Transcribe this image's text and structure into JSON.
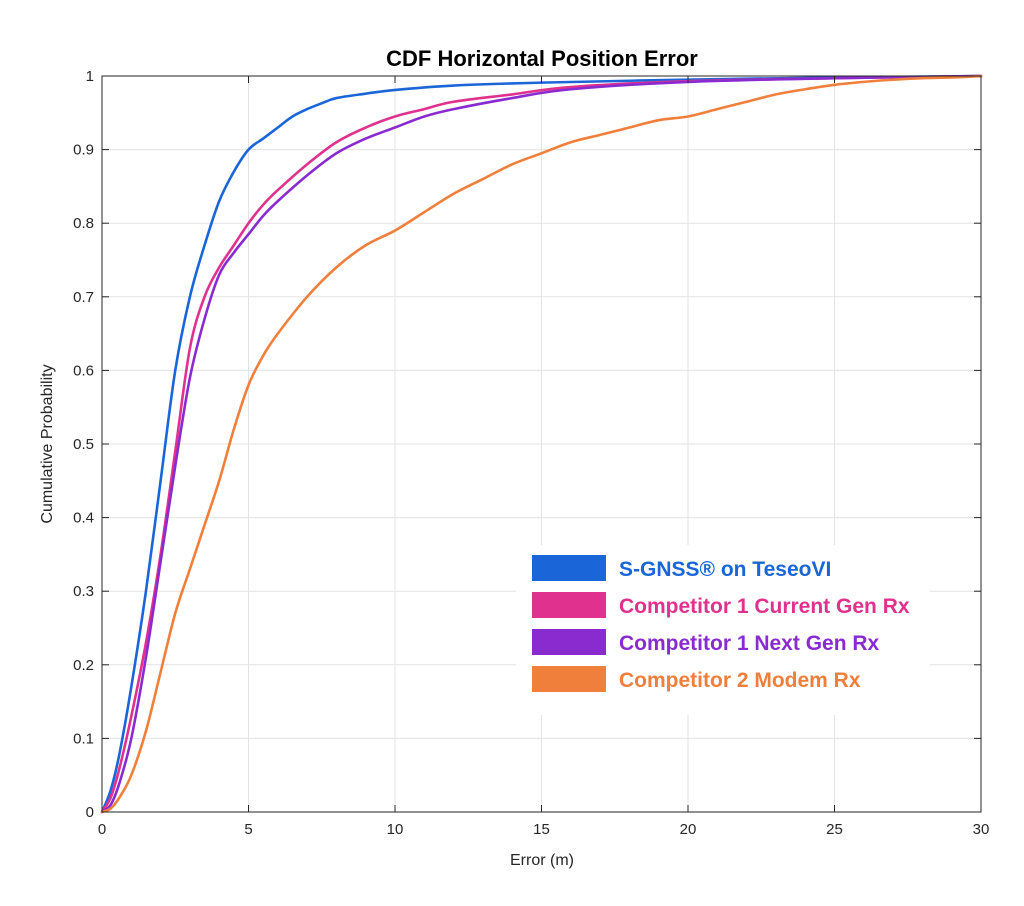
{
  "chart_data": {
    "type": "line",
    "title": "CDF Horizontal Position Error",
    "xlabel": "Error (m)",
    "ylabel": "Cumulative Probability",
    "xlim": [
      0,
      30
    ],
    "ylim": [
      0,
      1
    ],
    "xticks": [
      0,
      5,
      10,
      15,
      20,
      25,
      30
    ],
    "yticks": [
      0,
      0.1,
      0.2,
      0.3,
      0.4,
      0.5,
      0.6,
      0.7,
      0.8,
      0.9,
      1
    ],
    "xtick_labels": [
      "0",
      "5",
      "10",
      "15",
      "20",
      "25",
      "30"
    ],
    "ytick_labels": [
      "0",
      "0.1",
      "0.2",
      "0.3",
      "0.4",
      "0.5",
      "0.6",
      "0.7",
      "0.8",
      "0.9",
      "1"
    ],
    "grid": true,
    "legend_position": "lower-right",
    "series": [
      {
        "name": "S-GNSS® on TeseoVI",
        "color": "#1a66d9",
        "x": [
          0,
          0.3,
          0.6,
          1.0,
          1.5,
          2.0,
          2.5,
          3.0,
          3.5,
          4.0,
          4.5,
          5.0,
          5.5,
          6.0,
          6.5,
          7.0,
          7.5,
          8.0,
          9.0,
          10.0,
          12.0,
          15.0,
          20.0,
          25.0,
          30.0
        ],
        "values": [
          0,
          0.03,
          0.08,
          0.17,
          0.3,
          0.45,
          0.6,
          0.7,
          0.77,
          0.83,
          0.87,
          0.9,
          0.915,
          0.93,
          0.945,
          0.955,
          0.963,
          0.97,
          0.976,
          0.981,
          0.987,
          0.991,
          0.995,
          0.998,
          1.0
        ]
      },
      {
        "name": "Competitor 1 Current Gen Rx",
        "color": "#e0318f",
        "x": [
          0,
          0.3,
          0.6,
          1.0,
          1.5,
          2.0,
          2.5,
          3.0,
          3.5,
          4.0,
          4.5,
          5.0,
          5.5,
          6.0,
          7.0,
          8.0,
          9.0,
          10.0,
          11.0,
          12.0,
          14.0,
          16.0,
          20.0,
          25.0,
          30.0
        ],
        "values": [
          0,
          0.02,
          0.06,
          0.13,
          0.23,
          0.35,
          0.49,
          0.63,
          0.7,
          0.74,
          0.77,
          0.8,
          0.825,
          0.845,
          0.88,
          0.91,
          0.93,
          0.945,
          0.955,
          0.965,
          0.975,
          0.985,
          0.993,
          0.997,
          1.0
        ]
      },
      {
        "name": "Competitor 1 Next Gen Rx",
        "color": "#8a2bd0",
        "x": [
          0,
          0.3,
          0.6,
          1.0,
          1.5,
          2.0,
          2.5,
          3.0,
          3.5,
          4.0,
          4.5,
          5.0,
          5.5,
          6.0,
          7.0,
          8.0,
          9.0,
          10.0,
          11.0,
          12.0,
          14.0,
          16.0,
          20.0,
          25.0,
          30.0
        ],
        "values": [
          0,
          0.01,
          0.04,
          0.1,
          0.21,
          0.34,
          0.47,
          0.59,
          0.67,
          0.73,
          0.76,
          0.785,
          0.81,
          0.83,
          0.865,
          0.895,
          0.915,
          0.93,
          0.945,
          0.955,
          0.97,
          0.982,
          0.992,
          0.997,
          1.0
        ]
      },
      {
        "name": "Competitor 2 Modem Rx",
        "color": "#f07f3c",
        "x": [
          0,
          0.3,
          0.6,
          1.0,
          1.5,
          2.0,
          2.5,
          3.0,
          3.5,
          4.0,
          4.5,
          5.0,
          5.5,
          6.0,
          7.0,
          8.0,
          9.0,
          10.0,
          11.0,
          12.0,
          13.0,
          14.0,
          15.0,
          16.0,
          17.0,
          18.0,
          19.0,
          20.0,
          21.0,
          22.0,
          23.0,
          24.0,
          25.0,
          26.0,
          27.0,
          28.0,
          29.0,
          30.0
        ],
        "values": [
          0,
          0.005,
          0.02,
          0.05,
          0.11,
          0.19,
          0.27,
          0.33,
          0.39,
          0.45,
          0.52,
          0.58,
          0.62,
          0.65,
          0.7,
          0.74,
          0.77,
          0.79,
          0.815,
          0.84,
          0.86,
          0.88,
          0.895,
          0.91,
          0.92,
          0.93,
          0.94,
          0.945,
          0.955,
          0.965,
          0.975,
          0.982,
          0.988,
          0.992,
          0.995,
          0.997,
          0.998,
          1.0
        ]
      }
    ]
  }
}
